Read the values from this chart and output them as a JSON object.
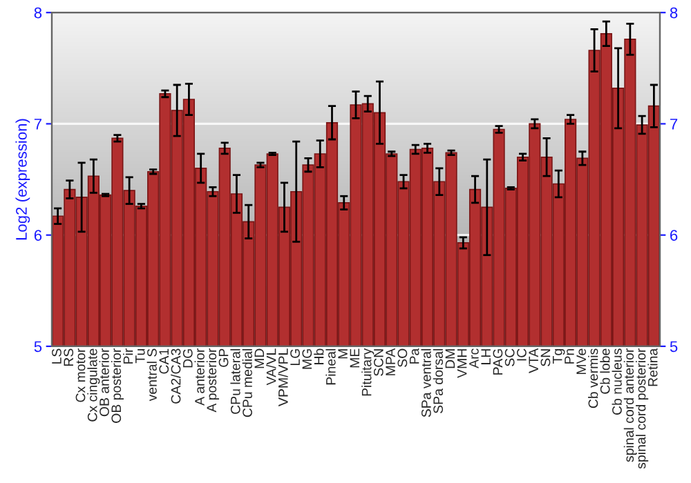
{
  "chart_data": {
    "type": "bar",
    "ylabel": "Log2 (expression)",
    "categories": [
      "LS",
      "RS",
      "Cx motor",
      "Cx cingulate",
      "OB anterior",
      "OB posterior",
      "Pir",
      "Tu",
      "ventral S",
      "CA1",
      "CA2/CA3",
      "DG",
      "A anterior",
      "A posterior",
      "GP",
      "CPu lateral",
      "CPu medial",
      "MD",
      "VA/VL",
      "VPM/VPL",
      "LG",
      "MG",
      "Hb",
      "Pineal",
      "M",
      "ME",
      "Pituitary",
      "SCN",
      "MPA",
      "SO",
      "Pa",
      "SPa ventral",
      "SPa dorsal",
      "DM",
      "VMH",
      "Arc",
      "LH",
      "PAG",
      "SC",
      "IC",
      "VTA",
      "SN",
      "Tg",
      "Pn",
      "MVe",
      "Cb vermis",
      "Cb lobe",
      "Cb nucleus",
      "spinal cord anterior",
      "spinal cord posterior",
      "Retina"
    ],
    "values": [
      6.17,
      6.41,
      6.34,
      6.53,
      6.36,
      6.87,
      6.4,
      6.26,
      6.57,
      7.27,
      7.12,
      7.22,
      6.6,
      6.39,
      6.78,
      6.37,
      6.12,
      6.63,
      6.73,
      6.25,
      6.39,
      6.63,
      6.73,
      7.01,
      6.29,
      7.17,
      7.18,
      7.1,
      6.73,
      6.48,
      6.77,
      6.78,
      6.48,
      6.74,
      5.93,
      6.41,
      6.25,
      6.95,
      6.42,
      6.7,
      7.0,
      6.7,
      6.46,
      7.04,
      6.69,
      7.66,
      7.81,
      7.32,
      7.76,
      6.99,
      7.16
    ],
    "errors": [
      0.07,
      0.08,
      0.31,
      0.15,
      0.01,
      0.03,
      0.12,
      0.02,
      0.02,
      0.03,
      0.23,
      0.14,
      0.13,
      0.04,
      0.05,
      0.17,
      0.15,
      0.02,
      0.01,
      0.22,
      0.45,
      0.06,
      0.12,
      0.15,
      0.06,
      0.12,
      0.07,
      0.28,
      0.02,
      0.06,
      0.04,
      0.04,
      0.12,
      0.02,
      0.05,
      0.12,
      0.43,
      0.03,
      0.01,
      0.03,
      0.04,
      0.17,
      0.12,
      0.04,
      0.06,
      0.19,
      0.11,
      0.36,
      0.14,
      0.08,
      0.19
    ],
    "color": "#b22f2f",
    "ylim": [
      5,
      8
    ],
    "yticks": [
      5,
      6,
      7,
      8
    ],
    "y2lim": [
      5,
      8
    ],
    "y2ticks": [
      5,
      6,
      7,
      8
    ],
    "grid": "y"
  }
}
